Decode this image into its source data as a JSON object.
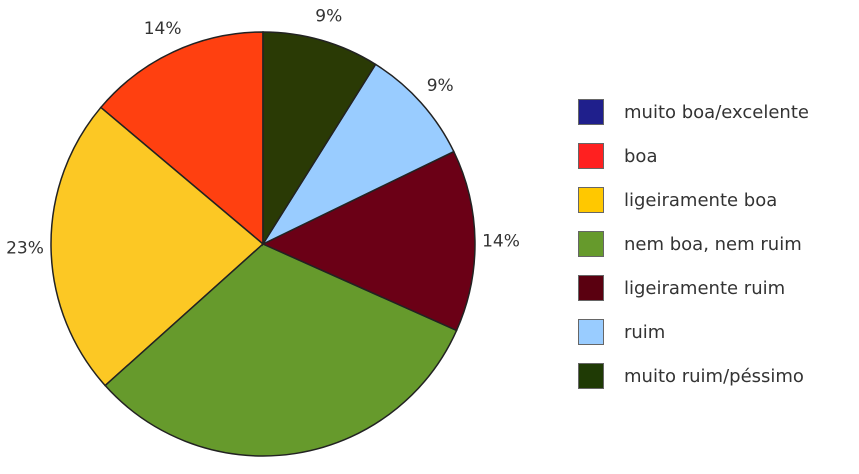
{
  "chart_data": {
    "type": "pie",
    "slices": [
      {
        "label": "muito boa/excelente",
        "value": 0,
        "display": "",
        "color": "#1f1f8c"
      },
      {
        "label": "boa",
        "value": 14,
        "display": "14%",
        "color": "#ff4010"
      },
      {
        "label": "ligeiramente boa",
        "value": 23,
        "display": "23%",
        "color": "#fcc824"
      },
      {
        "label": "nem boa, nem ruim",
        "value": 32,
        "display": "32%",
        "color": "#669a2c"
      },
      {
        "label": "ligeiramente ruim",
        "value": 14,
        "display": "14%",
        "color": "#6b0016"
      },
      {
        "label": "ruim",
        "value": 9,
        "display": "9%",
        "color": "#99ccff"
      },
      {
        "label": "muito ruim/péssimo",
        "value": 9,
        "display": "9%",
        "color": "#2a3a05"
      }
    ],
    "legend_position": "right",
    "legend": [
      {
        "label": "muito boa/excelente",
        "color": "#1f1f8c"
      },
      {
        "label": "boa",
        "color": "#ff2020"
      },
      {
        "label": "ligeiramente boa",
        "color": "#ffc800"
      },
      {
        "label": "nem boa, nem ruim",
        "color": "#669a2c"
      },
      {
        "label": "ligeiramente ruim",
        "color": "#5a0010"
      },
      {
        "label": "ruim",
        "color": "#99ccff"
      },
      {
        "label": "muito ruim/péssimo",
        "color": "#1f3a05"
      }
    ]
  }
}
